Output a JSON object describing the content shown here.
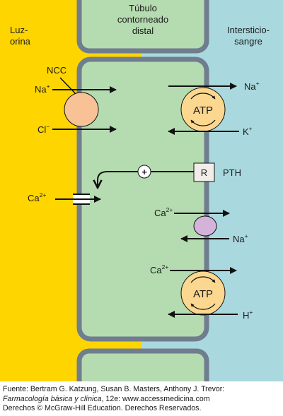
{
  "regions": {
    "lumen_line1": "Luz-",
    "lumen_line2": "orina",
    "tubule_line1": "Túbulo",
    "tubule_line2": "contorneado",
    "tubule_line3": "distal",
    "interstitium_line1": "Intersticio-",
    "interstitium_line2": "sangre"
  },
  "apical": {
    "transporter": "NCC",
    "na_ion": "Na",
    "na_charge": "+",
    "cl_ion": "Cl",
    "cl_charge": "−",
    "ca_ion": "Ca",
    "ca_charge": "2+"
  },
  "basolateral": {
    "pump1_label": "ATP",
    "pump1_na_ion": "Na",
    "pump1_na_charge": "+",
    "pump1_k_ion": "K",
    "pump1_k_charge": "+",
    "receptor_label": "R",
    "hormone": "PTH",
    "stimulation_symbol": "+",
    "exchanger_ca_ion": "Ca",
    "exchanger_ca_charge": "2+",
    "exchanger_na_ion": "Na",
    "exchanger_na_charge": "+",
    "pump2_ca_ion": "Ca",
    "pump2_ca_charge": "2+",
    "pump2_label": "ATP",
    "pump2_h_ion": "H",
    "pump2_h_charge": "+"
  },
  "caption": {
    "line1": "Fuente: Bertram G. Katzung, Susan B. Masters, Anthony J. Trevor:",
    "book_title": "Farmacología básica y clínica",
    "line2_rest": ", 12e: www.accessmedicina.com",
    "line3": "Derechos © McGraw-Hill Education. Derechos Reservados."
  },
  "colors": {
    "lumen": "#ffd500",
    "interstitium": "#a9d9de",
    "cell": "#b5dbb0",
    "membrane": "#6f7d8e",
    "ncc": "#f8c196",
    "atp_pump": "#fcd78f",
    "exchanger": "#d4b3db",
    "receptor": "#f1ede8"
  }
}
